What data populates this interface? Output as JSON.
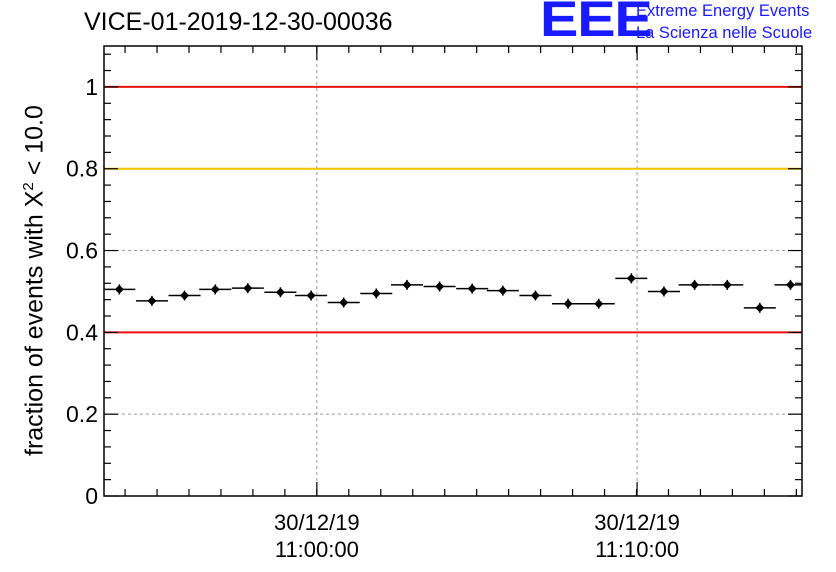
{
  "title": "VICE-01-2019-12-30-00036",
  "logo": {
    "mark": "EEE",
    "line1": "Extreme Energy Events",
    "line2": "La Scienza nelle Scuole",
    "color": "#1a1aff"
  },
  "chart_data": {
    "type": "scatter",
    "title": "VICE-01-2019-12-30-00036",
    "ylabel_prefix": "fraction of events with Χ",
    "ylabel_sup": "2",
    "ylabel_suffix": " < 10.0",
    "ylim": [
      0,
      1.1
    ],
    "x_unit": "minutes after 10:53:20 on 30/12/19",
    "xlim": [
      0,
      36.4
    ],
    "yticks": [
      {
        "value": 0,
        "label": "0"
      },
      {
        "value": 0.2,
        "label": "0.2"
      },
      {
        "value": 0.4,
        "label": "0.4"
      },
      {
        "value": 0.6,
        "label": "0.6"
      },
      {
        "value": 0.8,
        "label": "0.8"
      },
      {
        "value": 1.0,
        "label": "1"
      }
    ],
    "xticks": [
      {
        "value": 11.1,
        "date": "30/12/19",
        "time": "11:00:00"
      },
      {
        "value": 27.8,
        "date": "30/12/19",
        "time": "11:10:00"
      }
    ],
    "grid": true,
    "reference_lines": [
      {
        "y": 1.0,
        "color": "#e8120c"
      },
      {
        "y": 0.8,
        "color": "#f5c200"
      },
      {
        "y": 0.4,
        "color": "#e8120c"
      }
    ],
    "bin_width": 1.67,
    "points": [
      {
        "x": 0.8,
        "y": 0.505
      },
      {
        "x": 2.5,
        "y": 0.477
      },
      {
        "x": 4.2,
        "y": 0.49
      },
      {
        "x": 5.8,
        "y": 0.505
      },
      {
        "x": 7.5,
        "y": 0.508
      },
      {
        "x": 9.2,
        "y": 0.498
      },
      {
        "x": 10.8,
        "y": 0.49
      },
      {
        "x": 12.5,
        "y": 0.473
      },
      {
        "x": 14.2,
        "y": 0.495
      },
      {
        "x": 15.8,
        "y": 0.516
      },
      {
        "x": 17.5,
        "y": 0.512
      },
      {
        "x": 19.2,
        "y": 0.507
      },
      {
        "x": 20.8,
        "y": 0.502
      },
      {
        "x": 22.5,
        "y": 0.49
      },
      {
        "x": 24.2,
        "y": 0.47
      },
      {
        "x": 25.8,
        "y": 0.47
      },
      {
        "x": 27.5,
        "y": 0.532
      },
      {
        "x": 29.2,
        "y": 0.5
      },
      {
        "x": 30.8,
        "y": 0.516
      },
      {
        "x": 32.5,
        "y": 0.516
      },
      {
        "x": 34.2,
        "y": 0.46
      },
      {
        "x": 35.8,
        "y": 0.516
      }
    ]
  }
}
